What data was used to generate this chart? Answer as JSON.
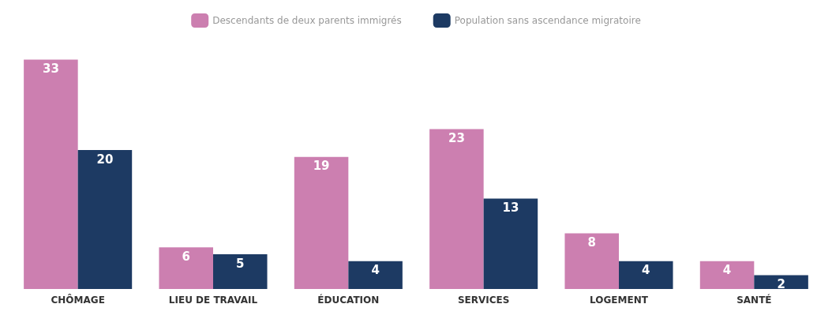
{
  "chart_data": {
    "type": "bar",
    "categories": [
      "CHÔMAGE",
      "LIEU DE TRAVAIL",
      "ÉDUCATION",
      "SERVICES",
      "LOGEMENT",
      "SANTÉ"
    ],
    "series": [
      {
        "name": "Descendants de deux parents immigrés",
        "color": "#cc7fb0",
        "values": [
          33,
          6,
          19,
          23,
          8,
          4
        ]
      },
      {
        "name": "Population sans ascendance migratoire",
        "color": "#1d3a63",
        "values": [
          20,
          5,
          4,
          13,
          4,
          2
        ]
      }
    ],
    "data_labels": true,
    "legend": "top"
  }
}
